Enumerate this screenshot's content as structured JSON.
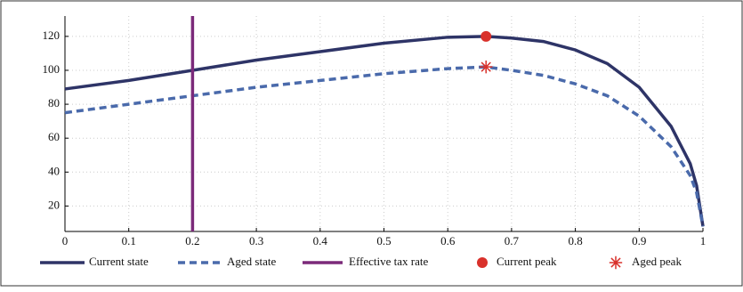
{
  "chart_data": {
    "type": "line",
    "x": [
      0,
      0.1,
      0.2,
      0.3,
      0.4,
      0.5,
      0.6,
      0.66,
      0.7,
      0.75,
      0.8,
      0.85,
      0.9,
      0.95,
      0.98,
      0.99,
      1
    ],
    "series": [
      {
        "name": "Current state",
        "color": "#2e3467",
        "style": "solid",
        "values": [
          89,
          94,
          100,
          106,
          111,
          116,
          119.5,
          120,
          119,
          117,
          112,
          104,
          90,
          67,
          45,
          32,
          8
        ]
      },
      {
        "name": "Aged state",
        "color": "#4a6aab",
        "style": "dashed",
        "values": [
          75,
          80,
          85,
          90,
          94,
          98,
          101,
          102,
          100,
          97,
          92,
          85,
          73,
          55,
          38,
          28,
          8
        ]
      }
    ],
    "vlines": [
      {
        "name": "Effective tax rate",
        "color": "#7b2a7a",
        "x": 0.2
      }
    ],
    "points": [
      {
        "name": "Current peak",
        "color": "#d9312b",
        "marker": "dot",
        "x": 0.66,
        "y": 120
      },
      {
        "name": "Aged peak",
        "color": "#d9312b",
        "marker": "star",
        "x": 0.66,
        "y": 102
      }
    ],
    "xlim": [
      0,
      1
    ],
    "xticks": [
      0,
      0.1,
      0.2,
      0.3,
      0.4,
      0.5,
      0.6,
      0.7,
      0.8,
      0.9,
      1
    ],
    "ylim": [
      5,
      132
    ],
    "yticks": [
      20,
      40,
      60,
      80,
      100,
      120
    ],
    "grid": true,
    "legend": "bottom"
  }
}
